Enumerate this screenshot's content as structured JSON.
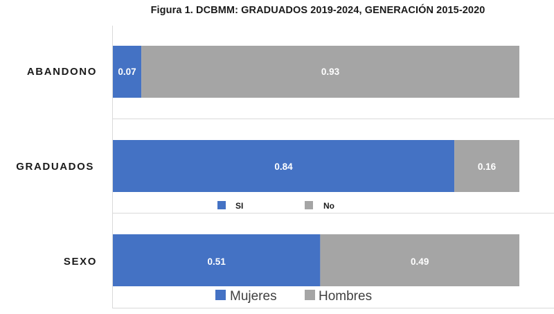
{
  "chart_data": {
    "type": "bar",
    "orientation": "horizontal",
    "stacked": true,
    "title": "Figura 1.  DCBMM:   GRADUADOS 2019-2024, GENERACIÓN 2015-2020",
    "xlim": [
      0,
      1
    ],
    "colors": {
      "first": "#4472c4",
      "second": "#a5a5a5"
    },
    "panels": [
      {
        "category": "ABANDONO",
        "series": [
          {
            "name": "SI",
            "value": 0.07,
            "label": "0.07"
          },
          {
            "name": "No",
            "value": 0.93,
            "label": "0.93"
          }
        ]
      },
      {
        "category": "GRADUADOS",
        "series": [
          {
            "name": "SI",
            "value": 0.84,
            "label": "0.84"
          },
          {
            "name": "No",
            "value": 0.16,
            "label": "0.16"
          }
        ],
        "legend": [
          "SI",
          "No"
        ]
      },
      {
        "category": "SEXO",
        "series": [
          {
            "name": "Mujeres",
            "value": 0.51,
            "label": "0.51"
          },
          {
            "name": "Hombres",
            "value": 0.49,
            "label": "0.49"
          }
        ],
        "legend": [
          "Mujeres",
          "Hombres"
        ]
      }
    ]
  }
}
